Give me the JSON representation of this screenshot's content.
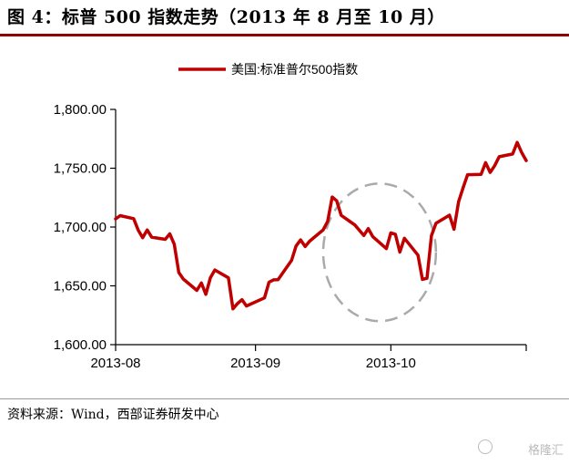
{
  "figure_title": "图 4：标普 500 指数走势（2013 年 8 月至 10 月）",
  "source_note": "资料来源：Wind，西部证券研发中心",
  "watermark": "格隆汇",
  "colors": {
    "series": "#c00000",
    "axis": "#000000",
    "highlight": "#aaaaaa"
  },
  "chart_data": {
    "type": "line",
    "title": "",
    "xlabel": "",
    "ylabel": "",
    "ylim": [
      1600,
      1800
    ],
    "yticks": [
      1600,
      1650,
      1700,
      1750,
      1800
    ],
    "ytick_labels": [
      "1,600.00",
      "1,650.00",
      "1,700.00",
      "1,750.00",
      "1,800.00"
    ],
    "xtick_labels": [
      "2013-08",
      "2013-09",
      "2013-10"
    ],
    "legend": {
      "position": "top",
      "entries": [
        "美国:标准普尔500指数"
      ]
    },
    "grid": false,
    "series": [
      {
        "name": "美国:标准普尔500指数",
        "color": "#c00000",
        "x": [
          "2013-08-01",
          "2013-08-02",
          "2013-08-05",
          "2013-08-06",
          "2013-08-07",
          "2013-08-08",
          "2013-08-09",
          "2013-08-12",
          "2013-08-13",
          "2013-08-14",
          "2013-08-15",
          "2013-08-16",
          "2013-08-19",
          "2013-08-20",
          "2013-08-21",
          "2013-08-22",
          "2013-08-23",
          "2013-08-26",
          "2013-08-27",
          "2013-08-28",
          "2013-08-29",
          "2013-08-30",
          "2013-09-03",
          "2013-09-04",
          "2013-09-05",
          "2013-09-06",
          "2013-09-09",
          "2013-09-10",
          "2013-09-11",
          "2013-09-12",
          "2013-09-13",
          "2013-09-16",
          "2013-09-17",
          "2013-09-18",
          "2013-09-19",
          "2013-09-20",
          "2013-09-23",
          "2013-09-24",
          "2013-09-25",
          "2013-09-26",
          "2013-09-27",
          "2013-09-30",
          "2013-10-01",
          "2013-10-02",
          "2013-10-03",
          "2013-10-04",
          "2013-10-07",
          "2013-10-08",
          "2013-10-09",
          "2013-10-10",
          "2013-10-11",
          "2013-10-14",
          "2013-10-15",
          "2013-10-16",
          "2013-10-17",
          "2013-10-18",
          "2013-10-21",
          "2013-10-22",
          "2013-10-23",
          "2013-10-24",
          "2013-10-25",
          "2013-10-28",
          "2013-10-29",
          "2013-10-30",
          "2013-10-31"
        ],
        "values": [
          1706.9,
          1709.7,
          1707.1,
          1697.4,
          1690.9,
          1697.5,
          1691.4,
          1689.5,
          1694.2,
          1685.4,
          1661.3,
          1655.8,
          1646.1,
          1652.4,
          1642.8,
          1656.9,
          1663.5,
          1656.8,
          1630.5,
          1634.9,
          1638.2,
          1632.9,
          1639.8,
          1653.1,
          1655.1,
          1655.2,
          1671.7,
          1683.9,
          1689.1,
          1683.4,
          1687.99,
          1697.6,
          1704.8,
          1725.5,
          1722.3,
          1709.9,
          1701.8,
          1697.4,
          1692.8,
          1698.7,
          1691.8,
          1681.6,
          1695.0,
          1693.9,
          1678.7,
          1690.5,
          1676.1,
          1655.5,
          1656.4,
          1692.6,
          1703.2,
          1710.1,
          1698.1,
          1721.5,
          1733.2,
          1744.5,
          1744.7,
          1754.7,
          1746.4,
          1752.1,
          1759.8,
          1762.1,
          1771.9,
          1763.3,
          1756.5
        ]
      }
    ],
    "highlight": {
      "shape": "ellipse",
      "style": "dashed",
      "x_range": [
        "2013-09-16",
        "2013-10-11"
      ],
      "y_range": [
        1620,
        1737
      ]
    }
  }
}
